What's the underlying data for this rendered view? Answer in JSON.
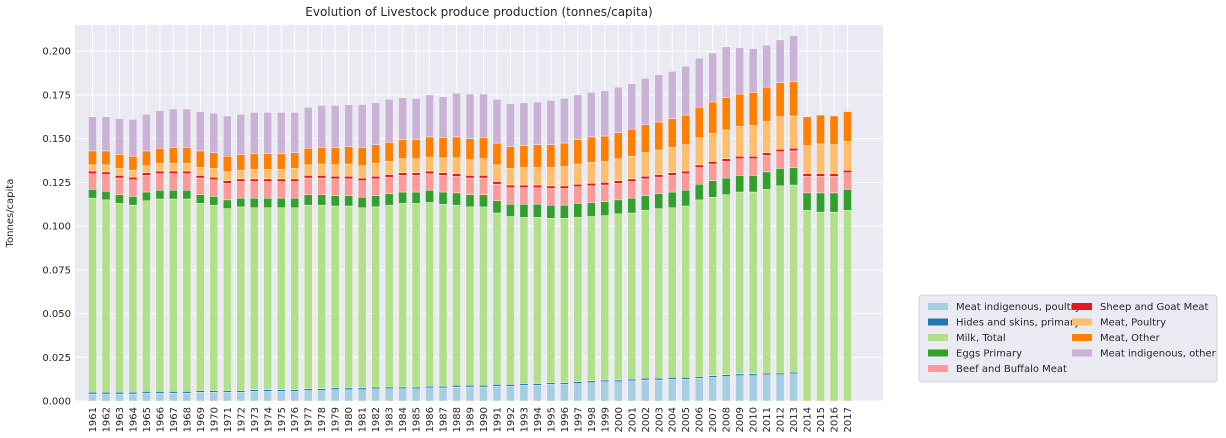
{
  "chart_data": {
    "type": "bar",
    "stacked": true,
    "title": "Evolution of Livestock produce production (tonnes/capita)",
    "xlabel": "",
    "ylabel": "Tonnes/capita",
    "ylim": [
      0,
      0.215
    ],
    "yticks": [
      0.0,
      0.025,
      0.05,
      0.075,
      0.1,
      0.125,
      0.15,
      0.175,
      0.2
    ],
    "ytick_labels": [
      "0.000",
      "0.025",
      "0.050",
      "0.075",
      "0.100",
      "0.125",
      "0.150",
      "0.175",
      "0.200"
    ],
    "grid": true,
    "legend_position": "right-center",
    "categories": [
      "1961",
      "1962",
      "1963",
      "1964",
      "1965",
      "1966",
      "1967",
      "1968",
      "1969",
      "1970",
      "1971",
      "1972",
      "1973",
      "1974",
      "1975",
      "1976",
      "1977",
      "1978",
      "1979",
      "1980",
      "1981",
      "1982",
      "1983",
      "1984",
      "1985",
      "1986",
      "1987",
      "1988",
      "1989",
      "1990",
      "1991",
      "1992",
      "1993",
      "1994",
      "1995",
      "1996",
      "1997",
      "1998",
      "1999",
      "2000",
      "2001",
      "2002",
      "2003",
      "2004",
      "2005",
      "2006",
      "2007",
      "2008",
      "2009",
      "2010",
      "2011",
      "2012",
      "2013",
      "2014",
      "2015",
      "2016",
      "2017"
    ],
    "series": [
      {
        "name": "Meat indigenous, poultry",
        "color": "#a6cee3",
        "values": [
          0.004,
          0.004,
          0.004,
          0.004,
          0.0045,
          0.0045,
          0.0045,
          0.0045,
          0.005,
          0.005,
          0.005,
          0.005,
          0.0055,
          0.0055,
          0.0055,
          0.0055,
          0.006,
          0.006,
          0.0065,
          0.0065,
          0.0065,
          0.007,
          0.007,
          0.007,
          0.007,
          0.0075,
          0.0075,
          0.008,
          0.008,
          0.008,
          0.0085,
          0.0085,
          0.009,
          0.009,
          0.0095,
          0.0095,
          0.01,
          0.0105,
          0.011,
          0.011,
          0.0115,
          0.012,
          0.012,
          0.0125,
          0.0125,
          0.013,
          0.0135,
          0.014,
          0.0145,
          0.0145,
          0.015,
          0.015,
          0.0155,
          0,
          0,
          0,
          0
        ]
      },
      {
        "name": "Hides and skins, primary",
        "color": "#1f78b4",
        "values": [
          0.001,
          0.001,
          0.001,
          0.001,
          0.001,
          0.001,
          0.001,
          0.001,
          0.001,
          0.001,
          0.001,
          0.001,
          0.001,
          0.001,
          0.001,
          0.001,
          0.001,
          0.001,
          0.001,
          0.001,
          0.001,
          0.001,
          0.001,
          0.001,
          0.001,
          0.001,
          0.001,
          0.001,
          0.001,
          0.001,
          0.001,
          0.001,
          0.001,
          0.001,
          0.001,
          0.001,
          0.001,
          0.001,
          0.001,
          0.001,
          0.001,
          0.001,
          0.001,
          0.001,
          0.001,
          0.001,
          0.001,
          0.001,
          0.001,
          0.001,
          0.001,
          0.001,
          0.001,
          0,
          0,
          0,
          0
        ]
      },
      {
        "name": "Milk, Total",
        "color": "#b2df8a",
        "values": [
          0.111,
          0.11,
          0.108,
          0.107,
          0.109,
          0.11,
          0.11,
          0.11,
          0.107,
          0.106,
          0.104,
          0.105,
          0.104,
          0.104,
          0.104,
          0.104,
          0.105,
          0.105,
          0.104,
          0.104,
          0.103,
          0.103,
          0.104,
          0.105,
          0.105,
          0.105,
          0.104,
          0.103,
          0.102,
          0.102,
          0.098,
          0.096,
          0.095,
          0.095,
          0.094,
          0.094,
          0.094,
          0.094,
          0.094,
          0.095,
          0.095,
          0.096,
          0.097,
          0.097,
          0.098,
          0.101,
          0.102,
          0.103,
          0.104,
          0.104,
          0.105,
          0.107,
          0.107,
          0.109,
          0.108,
          0.108,
          0.109
        ]
      },
      {
        "name": "Eggs Primary",
        "color": "#33a02c",
        "values": [
          0.005,
          0.005,
          0.005,
          0.005,
          0.005,
          0.005,
          0.005,
          0.005,
          0.005,
          0.005,
          0.005,
          0.005,
          0.0055,
          0.0055,
          0.0055,
          0.0055,
          0.006,
          0.006,
          0.006,
          0.006,
          0.006,
          0.0065,
          0.0065,
          0.0065,
          0.0065,
          0.007,
          0.007,
          0.007,
          0.007,
          0.007,
          0.007,
          0.007,
          0.0075,
          0.0075,
          0.0075,
          0.0075,
          0.008,
          0.008,
          0.008,
          0.008,
          0.0085,
          0.0085,
          0.0085,
          0.009,
          0.009,
          0.009,
          0.0095,
          0.0095,
          0.0095,
          0.0095,
          0.01,
          0.01,
          0.01,
          0.01,
          0.011,
          0.011,
          0.012
        ]
      },
      {
        "name": "Beef and Buffalo Meat",
        "color": "#fb9a99",
        "values": [
          0.009,
          0.0095,
          0.0095,
          0.0095,
          0.0095,
          0.0095,
          0.0095,
          0.0095,
          0.0095,
          0.0095,
          0.0095,
          0.0095,
          0.0095,
          0.0095,
          0.0095,
          0.0095,
          0.0095,
          0.0095,
          0.0095,
          0.0095,
          0.0095,
          0.0095,
          0.0095,
          0.0095,
          0.0095,
          0.0095,
          0.0095,
          0.0095,
          0.0095,
          0.0095,
          0.0095,
          0.0095,
          0.0095,
          0.0095,
          0.0095,
          0.0095,
          0.0095,
          0.0095,
          0.0095,
          0.0095,
          0.0095,
          0.0095,
          0.0095,
          0.0095,
          0.0095,
          0.0095,
          0.0095,
          0.0095,
          0.0095,
          0.0095,
          0.0095,
          0.0095,
          0.0095,
          0.0095,
          0.0095,
          0.0095,
          0.0095
        ]
      },
      {
        "name": "Sheep and Goat Meat",
        "color": "#e31a1c",
        "values": [
          0.0015,
          0.0015,
          0.0015,
          0.0015,
          0.0015,
          0.0015,
          0.0015,
          0.0015,
          0.0015,
          0.0015,
          0.0015,
          0.0015,
          0.0015,
          0.0015,
          0.0015,
          0.0015,
          0.0015,
          0.0015,
          0.0015,
          0.0015,
          0.0015,
          0.0015,
          0.0015,
          0.0015,
          0.0015,
          0.0015,
          0.0015,
          0.0015,
          0.0015,
          0.0015,
          0.0015,
          0.0015,
          0.0015,
          0.0015,
          0.0015,
          0.0015,
          0.0015,
          0.0015,
          0.0015,
          0.0015,
          0.0015,
          0.0015,
          0.0015,
          0.0015,
          0.0015,
          0.0015,
          0.0015,
          0.0015,
          0.0015,
          0.0015,
          0.0015,
          0.0015,
          0.0015,
          0.0015,
          0.0015,
          0.0015,
          0.0015
        ]
      },
      {
        "name": "Meat, Poultry",
        "color": "#fdbf6f",
        "values": [
          0.0035,
          0.004,
          0.004,
          0.004,
          0.004,
          0.0045,
          0.0045,
          0.0045,
          0.0045,
          0.005,
          0.005,
          0.005,
          0.0055,
          0.0055,
          0.0055,
          0.006,
          0.006,
          0.0065,
          0.0065,
          0.007,
          0.007,
          0.0075,
          0.0075,
          0.008,
          0.008,
          0.008,
          0.0085,
          0.009,
          0.009,
          0.0095,
          0.0095,
          0.0095,
          0.01,
          0.01,
          0.0105,
          0.011,
          0.0115,
          0.012,
          0.012,
          0.0125,
          0.013,
          0.0135,
          0.014,
          0.0145,
          0.015,
          0.0155,
          0.016,
          0.0165,
          0.017,
          0.0175,
          0.018,
          0.0185,
          0.0185,
          0.016,
          0.017,
          0.0165,
          0.0165
        ]
      },
      {
        "name": "Meat, Other",
        "color": "#ff7f00",
        "values": [
          0.008,
          0.008,
          0.008,
          0.008,
          0.0085,
          0.0085,
          0.009,
          0.009,
          0.0095,
          0.009,
          0.009,
          0.009,
          0.009,
          0.009,
          0.009,
          0.009,
          0.0095,
          0.0095,
          0.01,
          0.01,
          0.0105,
          0.0105,
          0.011,
          0.011,
          0.011,
          0.0115,
          0.0115,
          0.012,
          0.012,
          0.012,
          0.0125,
          0.0125,
          0.0125,
          0.013,
          0.013,
          0.0135,
          0.014,
          0.0145,
          0.0145,
          0.015,
          0.0155,
          0.016,
          0.016,
          0.0165,
          0.017,
          0.0175,
          0.018,
          0.0185,
          0.0185,
          0.019,
          0.0195,
          0.0195,
          0.0195,
          0.0165,
          0.0165,
          0.0165,
          0.017
        ]
      },
      {
        "name": "Meat indigenous, other",
        "color": "#cab2d6",
        "values": [
          0.0195,
          0.0195,
          0.0205,
          0.021,
          0.021,
          0.0215,
          0.022,
          0.022,
          0.0225,
          0.0225,
          0.023,
          0.023,
          0.0235,
          0.0235,
          0.0235,
          0.023,
          0.0235,
          0.024,
          0.024,
          0.024,
          0.0245,
          0.024,
          0.0245,
          0.024,
          0.0235,
          0.024,
          0.0235,
          0.025,
          0.0255,
          0.025,
          0.025,
          0.0245,
          0.0245,
          0.0245,
          0.0255,
          0.0255,
          0.0255,
          0.0255,
          0.026,
          0.026,
          0.026,
          0.0265,
          0.027,
          0.027,
          0.028,
          0.028,
          0.028,
          0.029,
          0.0265,
          0.025,
          0.024,
          0.0245,
          0.0265,
          0,
          0,
          0,
          0
        ]
      }
    ]
  }
}
